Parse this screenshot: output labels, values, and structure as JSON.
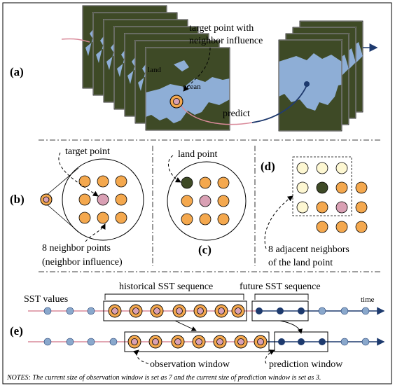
{
  "panels": {
    "a": "(a)",
    "b": "(b)",
    "c": "(c)",
    "d": "(d)",
    "e": "(e)"
  },
  "a": {
    "target_line1": "target point with",
    "target_line2": "neighbor influence",
    "land": "land",
    "ocean": "ocean",
    "predict": "predict"
  },
  "b": {
    "target_point": "target point",
    "neighbors_line1": "8 neighbor points",
    "neighbors_line2": "(neighbor influence)"
  },
  "c": {
    "land_point": "land point"
  },
  "d": {
    "adjacent_line1": "8 adjacent neighbors",
    "adjacent_line2": "of the land point"
  },
  "e": {
    "sst_values": "SST values",
    "historical": "historical SST sequence",
    "future": "future SST sequence",
    "time": "time",
    "observation_window": "observation window",
    "prediction_window": "prediction window"
  },
  "notes": "NOTES: The current size of observation window is set as 7 and the current size of prediction window is set as 3.",
  "colors": {
    "land": "#3e4a26",
    "ocean": "#8eaed6",
    "point_orange": "#f4a84e",
    "point_pink": "#d9a0b4",
    "point_cream": "#fdf7d2",
    "land_point": "#3e4a26",
    "past_line": "#d98a9a",
    "future_line": "#1d3a6e",
    "sst_dot": "#8aa8cc"
  }
}
